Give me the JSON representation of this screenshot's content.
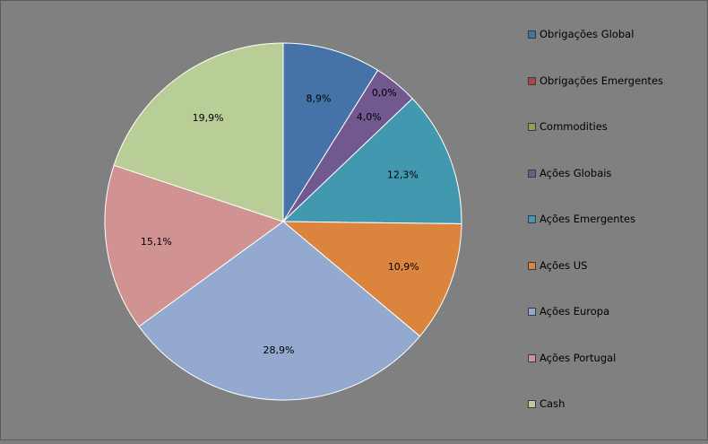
{
  "chart_data": {
    "type": "pie",
    "title": "",
    "legend_position": "right",
    "slices": [
      {
        "name": "Obrigações Global",
        "value": 8.9,
        "label": "8,9%",
        "color": "#4572a7"
      },
      {
        "name": "Obrigações Emergentes",
        "value": 0.0,
        "label": "0,0%",
        "color": "#aa4643"
      },
      {
        "name": "Commodities",
        "value": 0.0,
        "label": "",
        "color": "#89a54e"
      },
      {
        "name": "Ações Globais",
        "value": 4.0,
        "label": "4,0%",
        "color": "#71588f"
      },
      {
        "name": "Ações Emergentes",
        "value": 12.3,
        "label": "12,3%",
        "color": "#4198af"
      },
      {
        "name": "Ações US",
        "value": 10.9,
        "label": "10,9%",
        "color": "#db843d"
      },
      {
        "name": "Ações Europa",
        "value": 28.9,
        "label": "28,9%",
        "color": "#93a9cf"
      },
      {
        "name": "Ações Portugal",
        "value": 15.1,
        "label": "15,1%",
        "color": "#d19392"
      },
      {
        "name": "Cash",
        "value": 19.9,
        "label": "19,9%",
        "color": "#b9cd96"
      }
    ]
  }
}
